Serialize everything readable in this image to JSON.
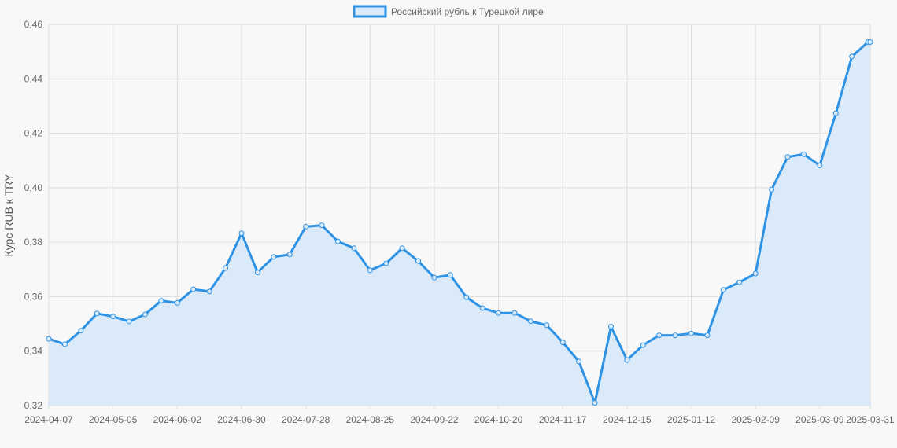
{
  "chart_data": {
    "type": "area",
    "xlabel": "",
    "ylabel": "Курс RUB к TRY",
    "ylim": [
      0.32,
      0.46
    ],
    "y_ticks": [
      "0,32",
      "0,34",
      "0,36",
      "0,38",
      "0,40",
      "0,42",
      "0,44",
      "0,46"
    ],
    "x_ticks": [
      "2024-04-07",
      "2024-05-05",
      "2024-06-02",
      "2024-06-30",
      "2024-07-28",
      "2024-08-25",
      "2024-09-22",
      "2024-10-20",
      "2024-11-17",
      "2024-12-15",
      "2025-01-12",
      "2025-02-09",
      "2025-03-09",
      "2025-03-31"
    ],
    "grid": true,
    "legend_position": "top-center",
    "colors": {
      "line": "#2e93e5",
      "fill": "#dbeaf8",
      "grid": "#dddddd",
      "background": "#f8f8f8"
    },
    "series": [
      {
        "name": "Российский рубль к Турецкой лире",
        "x": [
          "2024-04-07",
          "2024-04-14",
          "2024-04-21",
          "2024-04-28",
          "2024-05-05",
          "2024-05-12",
          "2024-05-19",
          "2024-05-26",
          "2024-06-02",
          "2024-06-09",
          "2024-06-16",
          "2024-06-23",
          "2024-06-30",
          "2024-07-07",
          "2024-07-14",
          "2024-07-21",
          "2024-07-28",
          "2024-08-04",
          "2024-08-11",
          "2024-08-18",
          "2024-08-25",
          "2024-09-01",
          "2024-09-08",
          "2024-09-15",
          "2024-09-22",
          "2024-09-29",
          "2024-10-06",
          "2024-10-13",
          "2024-10-20",
          "2024-10-27",
          "2024-11-03",
          "2024-11-10",
          "2024-11-17",
          "2024-11-24",
          "2024-12-01",
          "2024-12-08",
          "2024-12-15",
          "2024-12-22",
          "2024-12-29",
          "2025-01-05",
          "2025-01-12",
          "2025-01-19",
          "2025-01-26",
          "2025-02-02",
          "2025-02-09",
          "2025-02-16",
          "2025-02-23",
          "2025-03-02",
          "2025-03-09",
          "2025-03-16",
          "2025-03-23",
          "2025-03-30",
          "2025-03-31"
        ],
        "values": [
          0.3445,
          0.3425,
          0.3475,
          0.3538,
          0.3527,
          0.3509,
          0.3535,
          0.3585,
          0.3577,
          0.3627,
          0.3619,
          0.3705,
          0.3833,
          0.3689,
          0.3746,
          0.3755,
          0.3857,
          0.3862,
          0.3803,
          0.3778,
          0.3697,
          0.3722,
          0.3778,
          0.3731,
          0.367,
          0.368,
          0.3598,
          0.3558,
          0.354,
          0.354,
          0.351,
          0.3495,
          0.3432,
          0.3362,
          0.321,
          0.349,
          0.3367,
          0.3422,
          0.3458,
          0.3458,
          0.3465,
          0.3458,
          0.3625,
          0.3653,
          0.3685,
          0.3993,
          0.4113,
          0.4123,
          0.4082,
          0.4273,
          0.4482,
          0.4535,
          0.4535
        ]
      }
    ]
  }
}
